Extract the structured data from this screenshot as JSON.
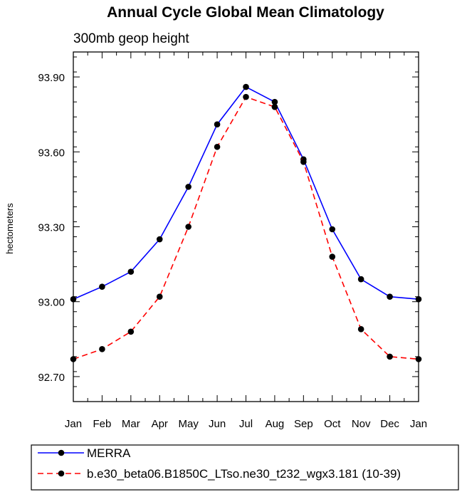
{
  "chart_data": {
    "type": "line",
    "title": "Annual Cycle Global Mean Climatology",
    "subtitle": "300mb geop height",
    "xlabel": "",
    "ylabel": "hectometers",
    "categories": [
      "Jan",
      "Feb",
      "Mar",
      "Apr",
      "May",
      "Jun",
      "Jul",
      "Aug",
      "Sep",
      "Oct",
      "Nov",
      "Dec",
      "Jan"
    ],
    "ylim": [
      92.6,
      94.0
    ],
    "yticks": [
      "93.90",
      "93.60",
      "93.30",
      "93.00",
      "92.70"
    ],
    "grid": false,
    "legend_position": "bottom",
    "series": [
      {
        "name": "MERRA",
        "color": "#0000ff",
        "dash": "solid",
        "marker": "filled-circle",
        "values": [
          93.01,
          93.06,
          93.12,
          93.25,
          93.46,
          93.71,
          93.86,
          93.8,
          93.57,
          93.29,
          93.09,
          93.02,
          93.01
        ]
      },
      {
        "name": "b.e30_beta06.B1850C_LTso.ne30_t232_wgx3.181 (10-39)",
        "color": "#ff0000",
        "dash": "dashed",
        "marker": "filled-circle",
        "values": [
          92.77,
          92.81,
          92.88,
          93.02,
          93.3,
          93.62,
          93.82,
          93.78,
          93.56,
          93.18,
          92.89,
          92.78,
          92.77
        ]
      }
    ]
  }
}
